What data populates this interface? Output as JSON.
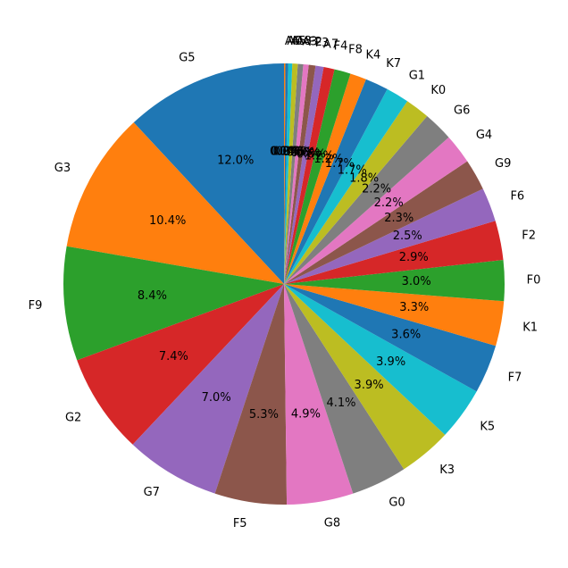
{
  "chart_data": {
    "type": "pie",
    "start_angle_deg": 90,
    "direction": "counterclockwise",
    "slices": [
      {
        "label": "G5",
        "value": 12.0,
        "pct_label": "12.0%",
        "color": "#1f77b4"
      },
      {
        "label": "G3",
        "value": 10.4,
        "pct_label": "10.4%",
        "color": "#ff7f0e"
      },
      {
        "label": "F9",
        "value": 8.4,
        "pct_label": "8.4%",
        "color": "#2ca02c"
      },
      {
        "label": "G2",
        "value": 7.4,
        "pct_label": "7.4%",
        "color": "#d62728"
      },
      {
        "label": "G7",
        "value": 7.0,
        "pct_label": "7.0%",
        "color": "#9467bd"
      },
      {
        "label": "F5",
        "value": 5.3,
        "pct_label": "5.3%",
        "color": "#8c564b"
      },
      {
        "label": "G8",
        "value": 4.9,
        "pct_label": "4.9%",
        "color": "#e377c2"
      },
      {
        "label": "G0",
        "value": 4.1,
        "pct_label": "4.1%",
        "color": "#7f7f7f"
      },
      {
        "label": "K3",
        "value": 3.9,
        "pct_label": "3.9%",
        "color": "#bcbd22"
      },
      {
        "label": "K5",
        "value": 3.9,
        "pct_label": "3.9%",
        "color": "#17becf"
      },
      {
        "label": "F7",
        "value": 3.6,
        "pct_label": "3.6%",
        "color": "#1f77b4"
      },
      {
        "label": "K1",
        "value": 3.3,
        "pct_label": "3.3%",
        "color": "#ff7f0e"
      },
      {
        "label": "F0",
        "value": 3.0,
        "pct_label": "3.0%",
        "color": "#2ca02c"
      },
      {
        "label": "F2",
        "value": 2.9,
        "pct_label": "2.9%",
        "color": "#d62728"
      },
      {
        "label": "F6",
        "value": 2.5,
        "pct_label": "2.5%",
        "color": "#9467bd"
      },
      {
        "label": "G9",
        "value": 2.3,
        "pct_label": "2.3%",
        "color": "#8c564b"
      },
      {
        "label": "G4",
        "value": 2.2,
        "pct_label": "2.2%",
        "color": "#e377c2"
      },
      {
        "label": "G6",
        "value": 2.2,
        "pct_label": "2.2%",
        "color": "#7f7f7f"
      },
      {
        "label": "K0",
        "value": 1.8,
        "pct_label": "1.8%",
        "color": "#bcbd22"
      },
      {
        "label": "G1",
        "value": 1.7,
        "pct_label": "1.7%",
        "color": "#17becf"
      },
      {
        "label": "K7",
        "value": 1.7,
        "pct_label": "1.7%",
        "color": "#1f77b4"
      },
      {
        "label": "K4",
        "value": 1.2,
        "pct_label": "1.2%",
        "color": "#ff7f0e"
      },
      {
        "label": "F8",
        "value": 1.2,
        "pct_label": "1.2%",
        "color": "#2ca02c"
      },
      {
        "label": "F4",
        "value": 0.8,
        "pct_label": "0.8%",
        "color": "#d62728"
      },
      {
        "label": "A7",
        "value": 0.6,
        "pct_label": "0.6%",
        "color": "#9467bd"
      },
      {
        "label": "F3",
        "value": 0.5,
        "pct_label": "0.5%",
        "color": "#8c564b"
      },
      {
        "label": "F2",
        "value": 0.4,
        "pct_label": "0.4%",
        "color": "#e377c2"
      },
      {
        "label": "A3",
        "value": 0.4,
        "pct_label": "0.4%",
        "color": "#7f7f7f"
      },
      {
        "label": "A8",
        "value": 0.4,
        "pct_label": "0.4%",
        "color": "#bcbd22"
      },
      {
        "label": "A5",
        "value": 0.3,
        "pct_label": "0.3%",
        "color": "#17becf"
      },
      {
        "label": "A0",
        "value": 0.2,
        "pct_label": "0.2%",
        "color": "#1f77b4"
      },
      {
        "label": "A6",
        "value": 0.1,
        "pct_label": "0.1%",
        "color": "#ff7f0e"
      }
    ]
  }
}
